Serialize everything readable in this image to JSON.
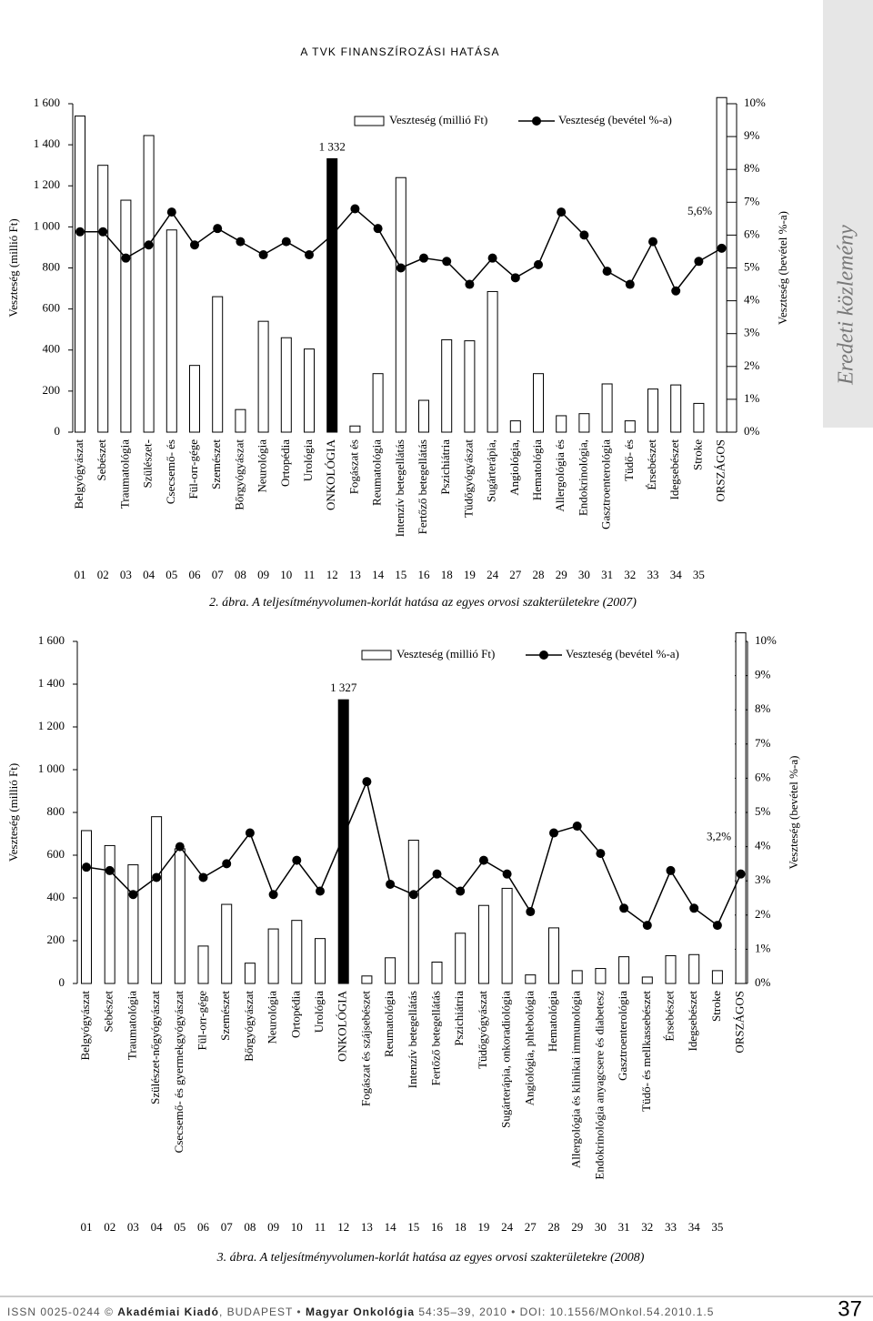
{
  "header": {
    "title": "A TVK FINANSZÍROZÁSI HATÁSA",
    "section": "Eredeti közlemény"
  },
  "chart_data": [
    {
      "type": "bar-line",
      "caption": "2. ábra. A teljesítményvolumen-korlát hatása az egyes orvosi szakterületekre (2007)",
      "y_label": "Veszteség (millió Ft)",
      "y2_label": "Veszteség (bevétel %-a)",
      "legend": "top-right",
      "categories": [
        "Belgyógyászat",
        "Sebészet",
        "Traumatológia",
        "Szülészet-",
        "Csecsemő- és",
        "Fül-orr-gége",
        "Szemészet",
        "Bőrgyógyászat",
        "Neurológia",
        "Ortopédia",
        "Urológia",
        "ONKOLÓGIA",
        "Fogászat és",
        "Reumatológia",
        "Intenzív betegellátás",
        "Fertőző betegellátás",
        "Pszichiátria",
        "Tüdőgyógyászat",
        "Sugárterápia,",
        "Angiológia,",
        "Hematológia",
        "Allergológia és",
        "Endokrinológia,",
        "Gasztroenterológia",
        "Tüdő- és",
        "Érsebészet",
        "Idegsebészet",
        "Stroke",
        "ORSZÁGOS"
      ],
      "codes": [
        "01",
        "02",
        "03",
        "04",
        "05",
        "06",
        "07",
        "08",
        "09",
        "10",
        "11",
        "12",
        "13",
        "14",
        "15",
        "16",
        "18",
        "19",
        "24",
        "27",
        "28",
        "29",
        "30",
        "31",
        "32",
        "33",
        "34",
        "35",
        null
      ],
      "ylim": [
        0,
        1600
      ],
      "yticks": [
        0,
        200,
        400,
        600,
        800,
        {
          "value": 1000,
          "label": "1 000"
        },
        {
          "value": 1200,
          "label": "1 200"
        },
        {
          "value": 1400,
          "label": "1 400"
        },
        {
          "value": 1600,
          "label": "1 600"
        }
      ],
      "y2lim": [
        0,
        10
      ],
      "y2ticks": [
        {
          "value": 0,
          "label": "0%"
        },
        {
          "value": 1,
          "label": "1%"
        },
        {
          "value": 2,
          "label": "2%"
        },
        {
          "value": 3,
          "label": "3%"
        },
        {
          "value": 4,
          "label": "4%"
        },
        {
          "value": 5,
          "label": "5%"
        },
        {
          "value": 6,
          "label": "6%"
        },
        {
          "value": 7,
          "label": "7%"
        },
        {
          "value": 8,
          "label": "8%"
        },
        {
          "value": 9,
          "label": "9%"
        },
        {
          "value": 10,
          "label": "10%"
        }
      ],
      "series": [
        {
          "name": "Veszteség (millió Ft)",
          "kind": "bar",
          "color": "#ffffff",
          "colors": [
            "#ffffff",
            "#ffffff",
            "#ffffff",
            "#ffffff",
            "#ffffff",
            "#ffffff",
            "#ffffff",
            "#ffffff",
            "#ffffff",
            "#ffffff",
            "#ffffff",
            "#000000",
            "#ffffff",
            "#ffffff",
            "#ffffff",
            "#ffffff",
            "#ffffff",
            "#ffffff",
            "#ffffff",
            "#ffffff",
            "#ffffff",
            "#ffffff",
            "#ffffff",
            "#ffffff",
            "#ffffff",
            "#ffffff",
            "#ffffff",
            "#ffffff",
            "#ffffff"
          ],
          "values": [
            1540,
            1300,
            1130,
            1445,
            985,
            325,
            660,
            110,
            540,
            460,
            405,
            1332,
            30,
            285,
            1240,
            155,
            450,
            445,
            685,
            55,
            285,
            80,
            90,
            235,
            55,
            210,
            230,
            140,
            1630
          ],
          "value_labels": [
            null,
            null,
            null,
            null,
            null,
            null,
            null,
            null,
            null,
            null,
            null,
            "1 332",
            null,
            null,
            null,
            null,
            null,
            null,
            null,
            null,
            null,
            null,
            null,
            null,
            null,
            null,
            null,
            null,
            null
          ]
        },
        {
          "name": "Veszteség (bevétel %-a)",
          "kind": "line",
          "axis": "y2",
          "color": "#000000",
          "values": [
            6.1,
            6.1,
            5.3,
            5.7,
            6.7,
            5.7,
            6.2,
            5.8,
            5.4,
            5.8,
            5.4,
            6.0,
            6.8,
            6.2,
            5.0,
            5.3,
            5.2,
            4.5,
            5.3,
            4.7,
            5.1,
            6.7,
            6.0,
            4.9,
            4.5,
            5.8,
            4.3,
            5.2,
            5.6
          ],
          "value_labels": [
            null,
            null,
            null,
            null,
            null,
            null,
            null,
            null,
            null,
            null,
            null,
            null,
            null,
            null,
            null,
            null,
            null,
            null,
            null,
            null,
            null,
            null,
            null,
            null,
            null,
            null,
            null,
            null,
            "5,6%"
          ]
        }
      ]
    },
    {
      "type": "bar-line",
      "caption": "3. ábra. A teljesítményvolumen-korlát hatása az egyes orvosi szakterületekre (2008)",
      "y_label": "Veszteség (millió Ft)",
      "y2_label": "Veszteség (bevétel %-a)",
      "legend": "top-right",
      "categories": [
        "Belgyógyászat",
        "Sebészet",
        "Traumatológia",
        "Szülészet-nőgyógyászat",
        "Csecsemő- és gyermekgyógyászat",
        "Fül-orr-gége",
        "Szemészet",
        "Bőrgyógyászat",
        "Neurológia",
        "Ortopédia",
        "Urológia",
        "ONKOLÓGIA",
        "Fogászat és szájsebészet",
        "Reumatológia",
        "Intenzív betegellátás",
        "Fertőző betegellátás",
        "Pszichiátria",
        "Tüdőgyógyászat",
        "Sugárterápia, onkoradiológia",
        "Angiológia, phlebológia",
        "Hematológia",
        "Allergológia és klinikai immunológia",
        "Endokrinológia anyagcsere és diabetesz",
        "Gasztroenterológia",
        "Tüdő- és mellkassebészet",
        "Érsebészet",
        "Idegsebészet",
        "Stroke",
        "ORSZÁGOS"
      ],
      "codes": [
        "01",
        "02",
        "03",
        "04",
        "05",
        "06",
        "07",
        "08",
        "09",
        "10",
        "11",
        "12",
        "13",
        "14",
        "15",
        "16",
        "18",
        "19",
        "24",
        "27",
        "28",
        "29",
        "30",
        "31",
        "32",
        "33",
        "34",
        "35",
        null
      ],
      "ylim": [
        0,
        1600
      ],
      "yticks": [
        0,
        200,
        400,
        600,
        800,
        {
          "value": 1000,
          "label": "1 000"
        },
        {
          "value": 1200,
          "label": "1 200"
        },
        {
          "value": 1400,
          "label": "1 400"
        },
        {
          "value": 1600,
          "label": "1 600"
        }
      ],
      "y2lim": [
        0,
        10
      ],
      "y2ticks": [
        {
          "value": 0,
          "label": "0%"
        },
        {
          "value": 1,
          "label": "1%"
        },
        {
          "value": 2,
          "label": "2%"
        },
        {
          "value": 3,
          "label": "3%"
        },
        {
          "value": 4,
          "label": "4%"
        },
        {
          "value": 5,
          "label": "5%"
        },
        {
          "value": 6,
          "label": "6%"
        },
        {
          "value": 7,
          "label": "7%"
        },
        {
          "value": 8,
          "label": "8%"
        },
        {
          "value": 9,
          "label": "9%"
        },
        {
          "value": 10,
          "label": "10%"
        }
      ],
      "series": [
        {
          "name": "Veszteség (millió Ft)",
          "kind": "bar",
          "color": "#ffffff",
          "colors": [
            "#ffffff",
            "#ffffff",
            "#ffffff",
            "#ffffff",
            "#ffffff",
            "#ffffff",
            "#ffffff",
            "#ffffff",
            "#ffffff",
            "#ffffff",
            "#ffffff",
            "#000000",
            "#ffffff",
            "#ffffff",
            "#ffffff",
            "#ffffff",
            "#ffffff",
            "#ffffff",
            "#ffffff",
            "#ffffff",
            "#ffffff",
            "#ffffff",
            "#ffffff",
            "#ffffff",
            "#ffffff",
            "#ffffff",
            "#ffffff",
            "#ffffff",
            "#ffffff"
          ],
          "values": [
            715,
            645,
            555,
            780,
            630,
            175,
            370,
            95,
            255,
            295,
            210,
            1327,
            35,
            120,
            670,
            100,
            235,
            365,
            445,
            40,
            260,
            60,
            70,
            125,
            30,
            130,
            135,
            60,
            1640
          ],
          "value_labels": [
            null,
            null,
            null,
            null,
            null,
            null,
            null,
            null,
            null,
            null,
            null,
            "1 327",
            null,
            null,
            null,
            null,
            null,
            null,
            null,
            null,
            null,
            null,
            null,
            null,
            null,
            null,
            null,
            null,
            null
          ]
        },
        {
          "name": "Veszteség (bevétel %-a)",
          "kind": "line",
          "axis": "y2",
          "color": "#000000",
          "values": [
            3.4,
            3.3,
            2.6,
            3.1,
            4.0,
            3.1,
            3.5,
            4.4,
            2.6,
            3.6,
            2.7,
            4.3,
            5.9,
            2.9,
            2.6,
            3.2,
            2.7,
            3.6,
            3.2,
            2.1,
            4.4,
            4.6,
            3.8,
            2.2,
            1.7,
            3.3,
            2.2,
            1.7,
            3.2
          ],
          "value_labels": [
            null,
            null,
            null,
            null,
            null,
            null,
            null,
            null,
            null,
            null,
            null,
            null,
            null,
            null,
            null,
            null,
            null,
            null,
            null,
            null,
            null,
            null,
            null,
            null,
            null,
            null,
            null,
            null,
            "3,2%"
          ]
        }
      ]
    }
  ],
  "footer": {
    "issn": "ISSN 0025-0244 ©",
    "publisher": "Akadémiai Kiadó",
    "city": ", BUDAPEST •",
    "journal": "Magyar Onkológia",
    "rest": "54:35–39, 2010 • DOI: 10.1556/MOnkol.54.2010.1.5",
    "page": "37"
  }
}
